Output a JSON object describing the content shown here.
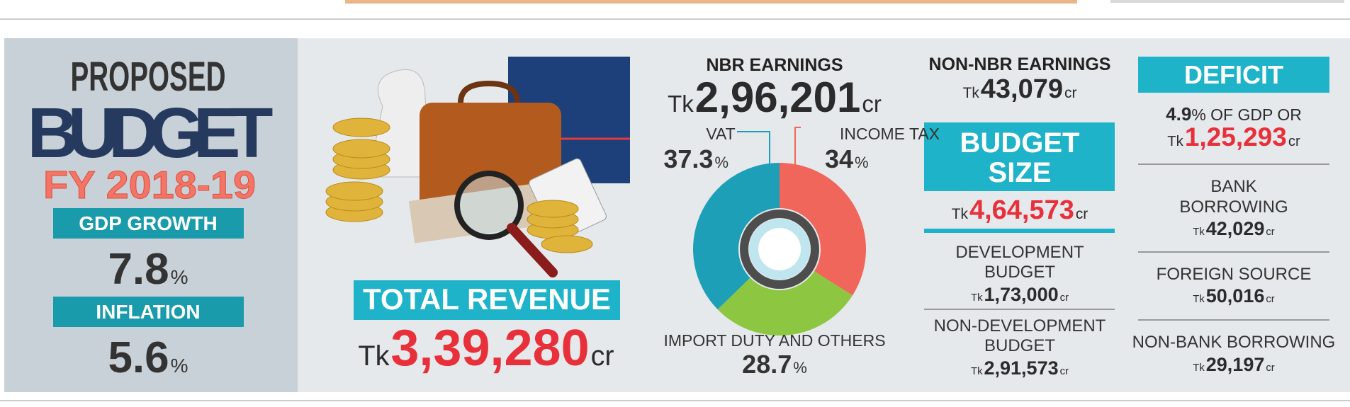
{
  "header": {
    "line1": "PROPOSED",
    "line2": "BUDGET",
    "fiscal_year": "FY 2018-19"
  },
  "indicators": [
    {
      "label": "GDP GROWTH",
      "value": 7.8,
      "unit": "%"
    },
    {
      "label": "INFLATION",
      "value": 5.6,
      "unit": "%"
    }
  ],
  "total_revenue": {
    "label": "TOTAL REVENUE",
    "currency": "Tk",
    "amount": "3,39,280",
    "unit": "cr"
  },
  "nbr_earnings": {
    "label": "NBR EARNINGS",
    "currency": "Tk",
    "amount": "2,96,201",
    "unit": "cr"
  },
  "revenue_breakdown": {
    "type": "pie",
    "slices": [
      {
        "label": "INCOME TAX",
        "value": 34,
        "unit": "%",
        "color": "#f0665a"
      },
      {
        "label": "IMPORT DUTY AND OTHERS",
        "value": 28.7,
        "unit": "%",
        "color": "#8dc641"
      },
      {
        "label": "VAT",
        "value": 37.3,
        "unit": "%",
        "color": "#1e9fb8"
      }
    ]
  },
  "non_nbr_earnings": {
    "label": "NON-NBR EARNINGS",
    "currency": "Tk",
    "amount": "43,079",
    "unit": "cr"
  },
  "budget_size": {
    "label_lines": [
      "BUDGET",
      "SIZE"
    ],
    "currency": "Tk",
    "amount": "4,64,573",
    "unit": "cr"
  },
  "development_budget": {
    "label_lines": [
      "DEVELOPMENT",
      "BUDGET"
    ],
    "currency": "Tk",
    "amount": "1,73,000",
    "unit": "cr"
  },
  "non_development_budget": {
    "label_lines": [
      "NON-DEVELOPMENT",
      "BUDGET"
    ],
    "currency": "Tk",
    "amount": "2,91,573",
    "unit": "cr"
  },
  "deficit": {
    "label": "DEFICIT",
    "gdp_share": 4.9,
    "gdp_share_text": "% OF GDP OR",
    "currency": "Tk",
    "amount": "1,25,293",
    "unit": "cr"
  },
  "deficit_financing": [
    {
      "label_lines": [
        "BANK",
        "BORROWING"
      ],
      "currency": "Tk",
      "amount": "42,029",
      "unit": "cr"
    },
    {
      "label_lines": [
        "FOREIGN SOURCE"
      ],
      "currency": "Tk",
      "amount": "50,016",
      "unit": "cr"
    },
    {
      "label_lines": [
        "NON-BANK BORROWING"
      ],
      "currency": "Tk",
      "amount": "29,197",
      "unit": "cr"
    }
  ]
}
